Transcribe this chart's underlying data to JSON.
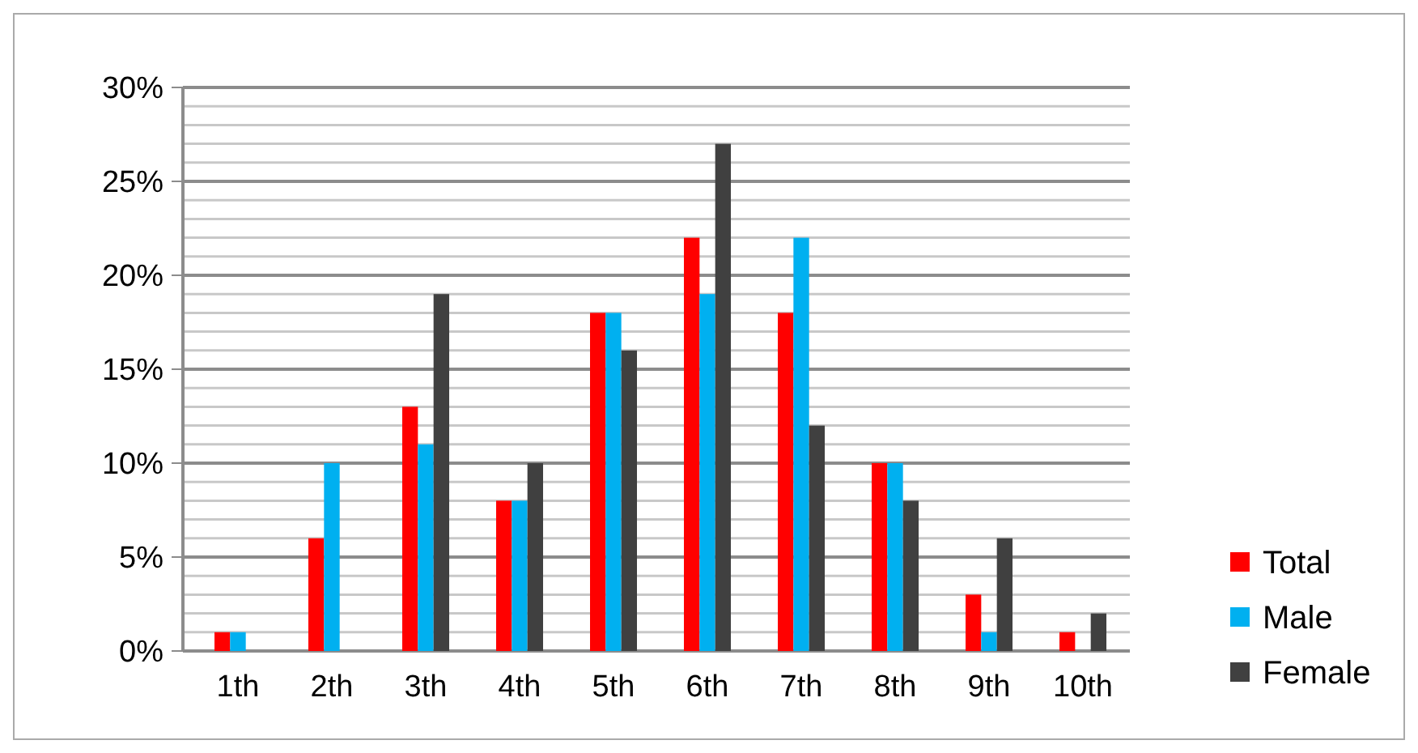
{
  "chart_data": {
    "type": "bar",
    "categories": [
      "1th",
      "2th",
      "3th",
      "4th",
      "5th",
      "6th",
      "7th",
      "8th",
      "9th",
      "10th"
    ],
    "series": [
      {
        "name": "Total",
        "color": "#ff0000",
        "values": [
          1,
          6,
          13,
          8,
          18,
          22,
          18,
          10,
          3,
          1
        ]
      },
      {
        "name": "Male",
        "color": "#00b0f0",
        "values": [
          1,
          10,
          11,
          8,
          18,
          19,
          22,
          10,
          1,
          0
        ]
      },
      {
        "name": "Female",
        "color": "#404040",
        "values": [
          0,
          0,
          19,
          10,
          16,
          27,
          12,
          8,
          6,
          2
        ]
      }
    ],
    "ylim": [
      0,
      30
    ],
    "yticks": [
      {
        "value": 0,
        "label": "0%"
      },
      {
        "value": 1,
        "label": null
      },
      {
        "value": 2,
        "label": null
      },
      {
        "value": 3,
        "label": null
      },
      {
        "value": 4,
        "label": null
      },
      {
        "value": 5,
        "label": "5%"
      },
      {
        "value": 6,
        "label": null
      },
      {
        "value": 7,
        "label": null
      },
      {
        "value": 8,
        "label": null
      },
      {
        "value": 9,
        "label": null
      },
      {
        "value": 10,
        "label": "10%"
      },
      {
        "value": 11,
        "label": null
      },
      {
        "value": 12,
        "label": null
      },
      {
        "value": 13,
        "label": null
      },
      {
        "value": 14,
        "label": null
      },
      {
        "value": 15,
        "label": "15%"
      },
      {
        "value": 16,
        "label": null
      },
      {
        "value": 17,
        "label": null
      },
      {
        "value": 18,
        "label": null
      },
      {
        "value": 19,
        "label": null
      },
      {
        "value": 20,
        "label": "20%"
      },
      {
        "value": 21,
        "label": null
      },
      {
        "value": 22,
        "label": null
      },
      {
        "value": 23,
        "label": null
      },
      {
        "value": 24,
        "label": null
      },
      {
        "value": 25,
        "label": "25%"
      },
      {
        "value": 26,
        "label": null
      },
      {
        "value": 27,
        "label": null
      },
      {
        "value": 28,
        "label": null
      },
      {
        "value": 29,
        "label": null
      },
      {
        "value": 30,
        "label": "30%"
      }
    ],
    "grid": "y",
    "legend": "right"
  }
}
